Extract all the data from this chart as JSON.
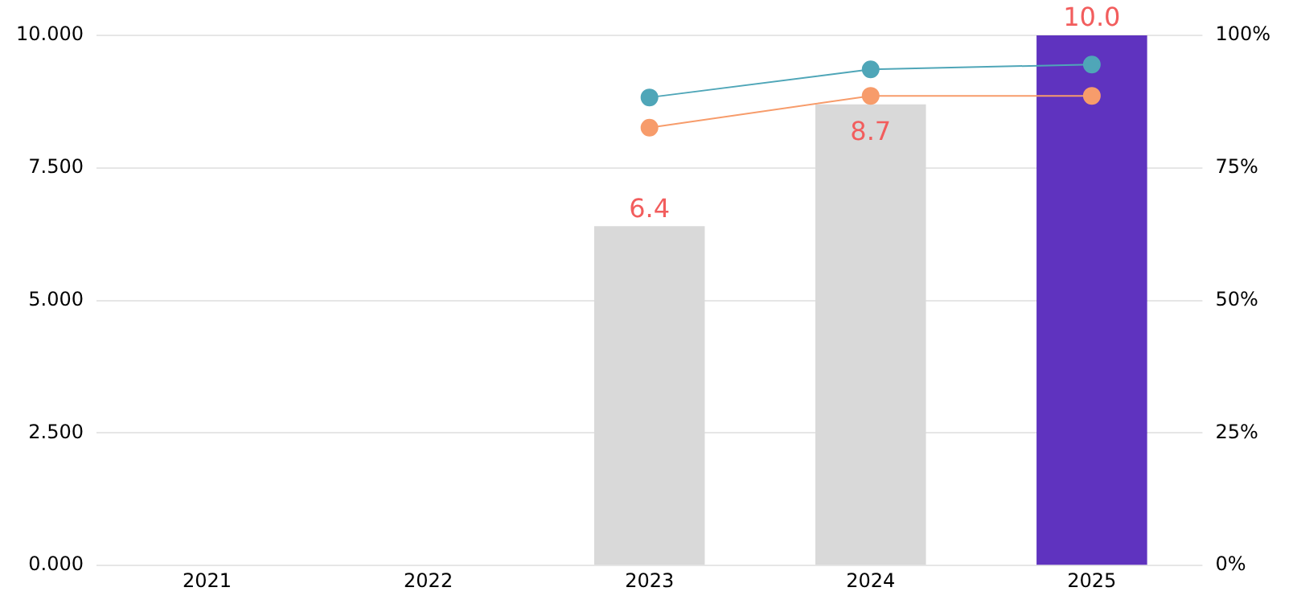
{
  "chart_data": {
    "type": "bar",
    "categories": [
      "2021",
      "2022",
      "2023",
      "2024",
      "2025"
    ],
    "series": [
      {
        "colors": [
          "#d9d9d9",
          "#d9d9d9",
          "#d9d9d9",
          "#d9d9d9",
          "#5f33bf"
        ],
        "values": [
          null,
          null,
          6.4,
          8.7,
          10.0
        ],
        "value_labels": [
          null,
          null,
          "6.4",
          "8.7",
          "10.0"
        ]
      },
      {
        "type": "line",
        "axis": "y2",
        "color": "#4fa6b8",
        "values": [
          null,
          null,
          88.3,
          93.6,
          94.5
        ]
      },
      {
        "type": "line",
        "axis": "y2",
        "color": "#f79c6b",
        "values": [
          null,
          null,
          82.6,
          88.6,
          88.6
        ]
      }
    ],
    "ylim": [
      0,
      10
    ],
    "yticks": [
      {
        "value": 0,
        "label": "0.000"
      },
      {
        "value": 2.5,
        "label": "2.500"
      },
      {
        "value": 5,
        "label": "5.000"
      },
      {
        "value": 7.5,
        "label": "7.500"
      },
      {
        "value": 10,
        "label": "10.000"
      }
    ],
    "y2lim": [
      0,
      100
    ],
    "y2ticks": [
      {
        "value": 0,
        "label": "0%"
      },
      {
        "value": 25,
        "label": "25%"
      },
      {
        "value": 50,
        "label": "50%"
      },
      {
        "value": 75,
        "label": "75%"
      },
      {
        "value": 100,
        "label": "100%"
      }
    ],
    "grid": "y",
    "legend": false,
    "marker": "circle",
    "line_style": "solid"
  }
}
